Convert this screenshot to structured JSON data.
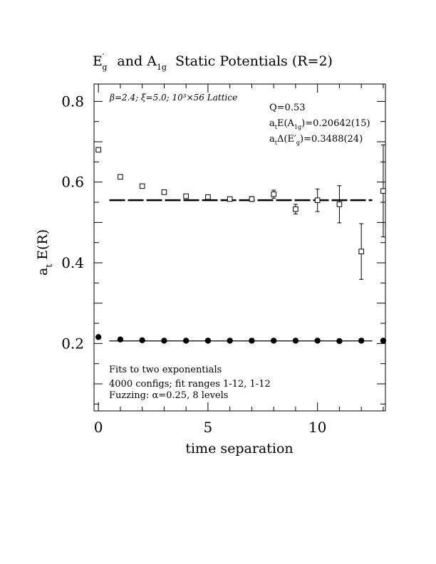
{
  "chart_data": {
    "type": "scatter",
    "title": {
      "prefix": "E",
      "prime": "′",
      "g_sub": "g",
      "mid": "and A",
      "a1g_sub": "1g",
      "suffix": "Static Potentials (R=2)"
    },
    "xlabel": "time separation",
    "ylabel": {
      "a": "a",
      "sub": "t",
      "rest": "E(R)"
    },
    "xlim": [
      -0.2,
      13.1
    ],
    "ylim": [
      0.033,
      0.843
    ],
    "x_ticks": [
      0,
      5,
      10
    ],
    "x_tick_labels": [
      "0",
      "5",
      "10"
    ],
    "y_ticks": [
      0.2,
      0.4,
      0.6,
      0.8
    ],
    "y_tick_labels": [
      "0.2",
      "0.4",
      "0.6",
      "0.8"
    ],
    "annotations": {
      "lattice": "β=2.4; ξ=5.0; 10³×56 Lattice",
      "q": "Q=0.53",
      "a1g_energy": {
        "pre": "a",
        "t": "t",
        "mid": "E(A",
        "sub": "1g",
        "post": ")=0.20642(15)"
      },
      "eg_delta": {
        "pre": "a",
        "t": "t",
        "mid": "Δ(E′",
        "sub": "g",
        "post": ")=0.3488(24)"
      },
      "fits": "Fits to two exponentials",
      "configs": "4000 configs; fit ranges 1-12, 1-12",
      "fuzzing": "Fuzzing: α=0.25, 8 levels"
    },
    "series": [
      {
        "marker": "open-square",
        "x": [
          0,
          1,
          2,
          3,
          4,
          5,
          6,
          7,
          8,
          9,
          10,
          11,
          12,
          13
        ],
        "y": [
          0.68,
          0.613,
          0.59,
          0.575,
          0.565,
          0.563,
          0.558,
          0.558,
          0.57,
          0.533,
          0.555,
          0.545,
          0.428,
          0.578
        ],
        "err": [
          0.003,
          0.003,
          0.003,
          0.004,
          0.004,
          0.005,
          0.005,
          0.006,
          0.01,
          0.012,
          0.028,
          0.046,
          0.069,
          0.114
        ]
      },
      {
        "marker": "filled-circle",
        "x": [
          0,
          1,
          2,
          3,
          4,
          5,
          6,
          7,
          8,
          9,
          10,
          11,
          12,
          13
        ],
        "y": [
          0.216,
          0.21,
          0.208,
          0.207,
          0.207,
          0.207,
          0.207,
          0.207,
          0.207,
          0.207,
          0.207,
          0.206,
          0.207,
          0.207
        ],
        "err": [
          0,
          0,
          0,
          0,
          0,
          0,
          0,
          0,
          0,
          0,
          0,
          0,
          0,
          0
        ]
      }
    ],
    "fits": [
      {
        "style": "dashed",
        "value": 0.5552,
        "x_range": [
          1,
          12
        ]
      },
      {
        "style": "solid",
        "value": 0.20642,
        "x_range": [
          1,
          12
        ]
      }
    ]
  }
}
